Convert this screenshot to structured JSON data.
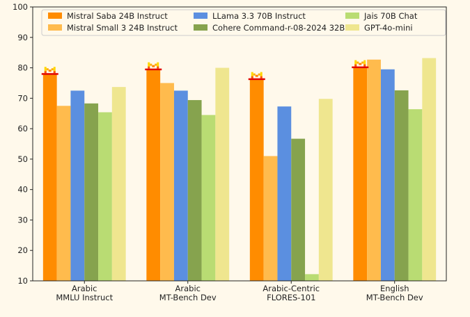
{
  "chart_data": {
    "type": "bar",
    "title": "",
    "xlabel": "",
    "ylabel": "",
    "ylim": [
      10,
      100
    ],
    "yticks": [
      10,
      20,
      30,
      40,
      50,
      60,
      70,
      80,
      90,
      100
    ],
    "grid": false,
    "legend_position": "top",
    "categories": [
      [
        "Arabic",
        "MMLU Instruct"
      ],
      [
        "Arabic",
        "MT-Bench Dev"
      ],
      [
        "Arabic-Centric",
        "FLORES-101"
      ],
      [
        "English",
        "MT-Bench Dev"
      ]
    ],
    "series": [
      {
        "name": "Mistral Saba 24B Instruct",
        "color": "#ff8c00",
        "values": [
          77.8,
          79.3,
          76.1,
          80.0
        ],
        "logo_marker": true
      },
      {
        "name": "Mistral Small 3 24B Instruct",
        "color": "#ffbb4d",
        "values": [
          67.5,
          75.0,
          51.0,
          82.7
        ]
      },
      {
        "name": "LLama 3.3 70B Instruct",
        "color": "#5b8fe0",
        "values": [
          72.5,
          72.5,
          67.3,
          79.5
        ]
      },
      {
        "name": "Cohere Command-r-08-2024 32B",
        "color": "#86a34e",
        "values": [
          68.3,
          69.4,
          56.7,
          72.6
        ]
      },
      {
        "name": "Jais 70B Chat",
        "color": "#b9dc73",
        "values": [
          65.4,
          64.5,
          12.2,
          66.4
        ]
      },
      {
        "name": "GPT-4o-mini",
        "color": "#efe68f",
        "values": [
          73.7,
          80.0,
          69.8,
          83.2
        ]
      }
    ]
  }
}
